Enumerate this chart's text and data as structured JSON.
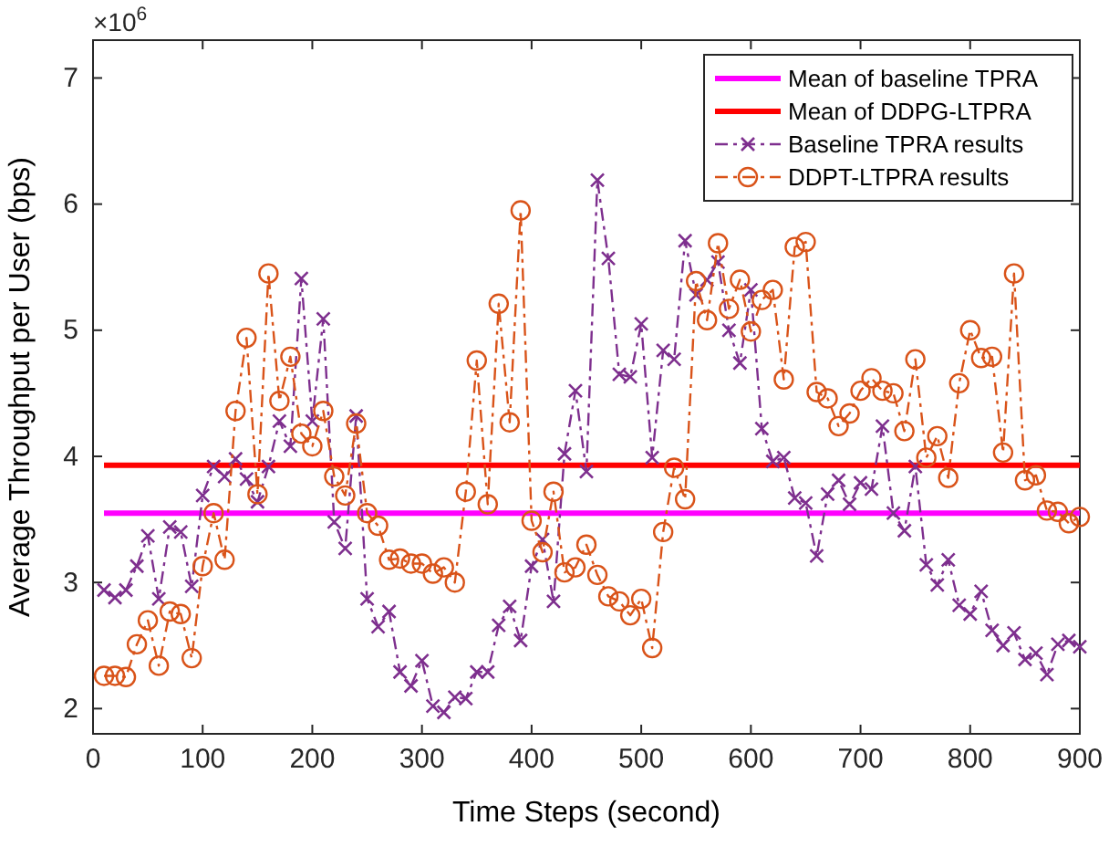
{
  "chart_data": {
    "type": "line",
    "xlabel": "Time Steps (second)",
    "ylabel": "Average Throughput per User (bps)",
    "annotations": [
      "×10$^{6}$"
    ],
    "x": [
      10,
      20,
      30,
      40,
      50,
      60,
      70,
      80,
      90,
      100,
      110,
      120,
      130,
      140,
      150,
      160,
      170,
      180,
      190,
      200,
      210,
      220,
      230,
      240,
      250,
      260,
      270,
      280,
      290,
      300,
      310,
      320,
      330,
      340,
      350,
      360,
      370,
      380,
      390,
      400,
      410,
      420,
      430,
      440,
      450,
      460,
      470,
      480,
      490,
      500,
      510,
      520,
      530,
      540,
      550,
      560,
      570,
      580,
      590,
      600,
      610,
      620,
      630,
      640,
      650,
      660,
      670,
      680,
      690,
      700,
      710,
      720,
      730,
      740,
      750,
      760,
      770,
      780,
      790,
      800,
      810,
      820,
      830,
      840,
      850,
      860,
      870,
      880,
      890,
      900
    ],
    "xlim": [
      0,
      900
    ],
    "xticks": [
      0,
      100,
      200,
      300,
      400,
      500,
      600,
      700,
      800,
      900
    ],
    "ylim": [
      1.8,
      7.3
    ],
    "yticks": [
      2,
      3,
      4,
      5,
      6,
      7
    ],
    "ref_lines": [
      {
        "axis": "y",
        "value": 3.55,
        "label": "Mean of baseline TPRA",
        "color": "#ff00ff"
      },
      {
        "axis": "y",
        "value": 3.93,
        "label": "Mean of DDPG-LTPRA",
        "color": "#ff0000"
      }
    ],
    "series": [
      {
        "name": "Baseline TPRA results",
        "color": "#7e2f8e",
        "marker": "cross",
        "line_style": "dashed",
        "values": [
          2.94,
          2.88,
          2.94,
          3.13,
          3.37,
          2.87,
          3.44,
          3.4,
          2.97,
          3.69,
          3.92,
          3.84,
          3.98,
          3.82,
          3.64,
          3.92,
          4.28,
          4.08,
          5.41,
          4.28,
          5.09,
          3.48,
          3.27,
          4.32,
          2.87,
          2.65,
          2.77,
          2.29,
          2.18,
          2.38,
          2.02,
          1.97,
          2.09,
          2.08,
          2.29,
          2.29,
          2.66,
          2.81,
          2.54,
          3.13,
          3.34,
          2.85,
          4.02,
          4.52,
          3.88,
          6.19,
          5.57,
          4.65,
          4.63,
          5.05,
          3.99,
          4.84,
          4.77,
          5.71,
          5.28,
          5.4,
          5.54,
          5.0,
          4.74,
          5.32,
          4.22,
          3.96,
          3.99,
          3.67,
          3.63,
          3.21,
          3.7,
          3.81,
          3.62,
          3.79,
          3.74,
          4.24,
          3.55,
          3.41,
          3.92,
          3.14,
          2.98,
          3.18,
          2.82,
          2.75,
          2.93,
          2.62,
          2.5,
          2.6,
          2.39,
          2.44,
          2.27,
          2.51,
          2.54,
          2.49
        ]
      },
      {
        "name": "DDPT-LTPRA results",
        "color": "#d95319",
        "marker": "circle",
        "line_style": "dashed",
        "values": [
          2.26,
          2.26,
          2.25,
          2.51,
          2.7,
          2.34,
          2.77,
          2.75,
          2.4,
          3.13,
          3.55,
          3.18,
          4.36,
          4.94,
          3.7,
          5.45,
          4.44,
          4.79,
          4.18,
          4.08,
          4.36,
          3.84,
          3.69,
          4.26,
          3.55,
          3.45,
          3.18,
          3.19,
          3.15,
          3.15,
          3.07,
          3.12,
          3.0,
          3.72,
          4.76,
          3.62,
          5.21,
          4.27,
          5.95,
          3.49,
          3.24,
          3.72,
          3.08,
          3.12,
          3.3,
          3.06,
          2.89,
          2.85,
          2.74,
          2.87,
          2.48,
          3.4,
          3.91,
          3.66,
          5.39,
          5.08,
          5.69,
          5.17,
          5.4,
          4.99,
          5.24,
          5.32,
          4.61,
          5.66,
          5.7,
          4.51,
          4.46,
          4.24,
          4.34,
          4.52,
          4.62,
          4.52,
          4.5,
          4.2,
          4.77,
          3.99,
          4.16,
          3.83,
          4.58,
          5.0,
          4.78,
          4.79,
          4.03,
          5.45,
          3.81,
          3.85,
          3.57,
          3.56,
          3.47,
          3.52
        ]
      }
    ],
    "legend": "top right",
    "grid": false
  }
}
